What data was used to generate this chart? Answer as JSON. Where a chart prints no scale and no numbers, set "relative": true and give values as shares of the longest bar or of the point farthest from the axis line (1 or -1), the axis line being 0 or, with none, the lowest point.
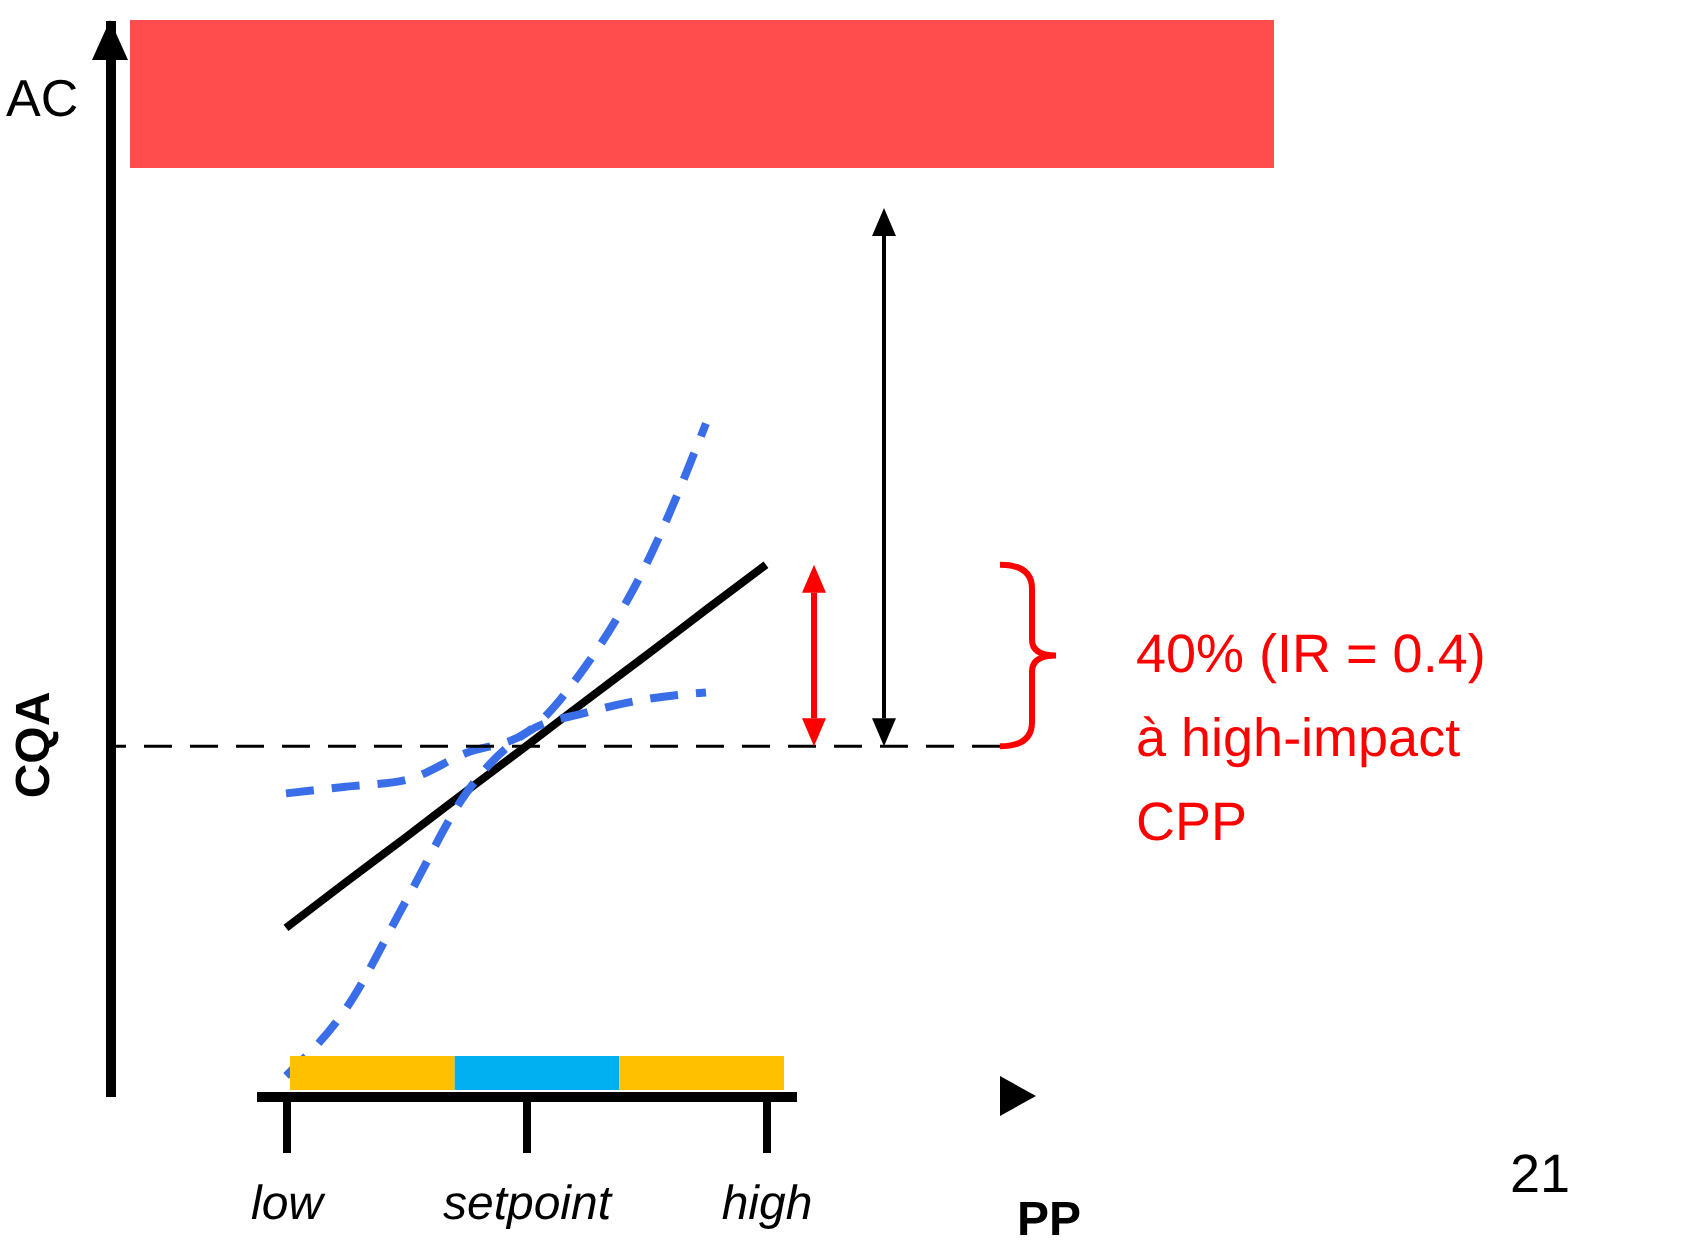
{
  "chart_data": {
    "type": "line",
    "relative": true,
    "xlabel": "PP",
    "ylabel": "CQA",
    "categories": [
      "low",
      null,
      null,
      null,
      "setpoint",
      null,
      null,
      null,
      "high"
    ],
    "series": [
      {
        "color": "#000000",
        "line_style": "solid",
        "values": [
          0.25,
          0.318,
          0.385,
          0.453,
          0.52,
          0.588,
          0.655,
          0.723,
          0.79
        ]
      },
      {
        "color": "#3a6ee8",
        "line_style": "dashed",
        "values": [
          0.45,
          0.46,
          0.47,
          0.51,
          0.54,
          0.64,
          0.79,
          1,
          null
        ]
      },
      {
        "color": "#3a6ee8",
        "line_style": "dashed",
        "values": [
          0.03,
          0.13,
          0.29,
          0.45,
          0.54,
          0.57,
          0.59,
          0.6,
          null
        ]
      }
    ],
    "ref_lines": [
      {
        "axis": "y",
        "value": 0.52,
        "color": "#000000",
        "line_style": "dashed"
      }
    ],
    "bands": [
      {
        "axis": "y",
        "from": 1.38,
        "to": 1.6,
        "label": "AC",
        "color": "#ff0000"
      }
    ],
    "annotations": [
      "40% (IR = 0.4)\nà  high-impact\nCPP",
      "21"
    ],
    "marker": "none"
  }
}
